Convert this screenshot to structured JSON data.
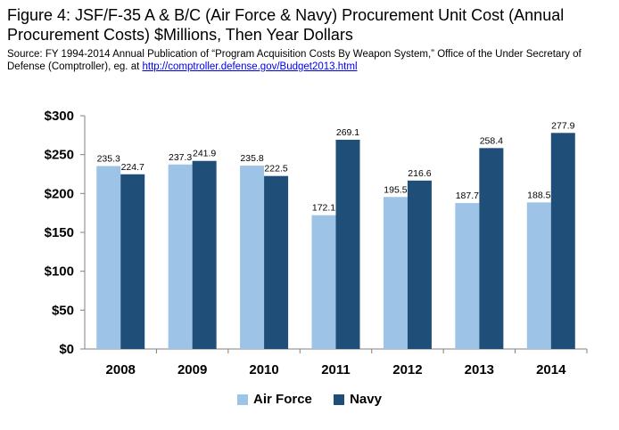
{
  "title": "Figure 4: JSF/F-35 A & B/C (Air Force & Navy) Procurement Unit Cost (Annual Procurement Costs) $Millions, Then Year Dollars",
  "source_text": "Source: FY 1994-2014 Annual Publication of “Program Acquisition Costs By Weapon System,” Office of the Under Secretary of Defense (Comptroller), eg. at ",
  "source_link": "http://comptroller.defense.gov/Budget2013.html",
  "colors": {
    "air_force": "#9dc3e6",
    "navy": "#1f4e79"
  },
  "chart_data": {
    "type": "bar",
    "categories": [
      "2008",
      "2009",
      "2010",
      "2011",
      "2012",
      "2013",
      "2014"
    ],
    "series": [
      {
        "name": "Air Force",
        "values": [
          235.3,
          237.3,
          235.8,
          172.1,
          195.5,
          187.7,
          188.5
        ],
        "labels": [
          "235.3",
          "237.3",
          "235.8",
          "172.1",
          "195.5",
          "187.7",
          "188.5"
        ]
      },
      {
        "name": "Navy",
        "values": [
          224.7,
          241.9,
          222.5,
          269.1,
          216.6,
          258.4,
          277.9
        ],
        "labels": [
          "224.7",
          "241.9",
          "222.5",
          "269.1",
          "216.6",
          "258.4",
          "277.9"
        ]
      }
    ],
    "ylim": [
      0,
      300
    ],
    "yticks": [
      0,
      50,
      100,
      150,
      200,
      250,
      300
    ],
    "ytick_labels": [
      "$0",
      "$50",
      "$100",
      "$150",
      "$200",
      "$250",
      "$300"
    ],
    "grid": false,
    "legend_position": "bottom"
  }
}
